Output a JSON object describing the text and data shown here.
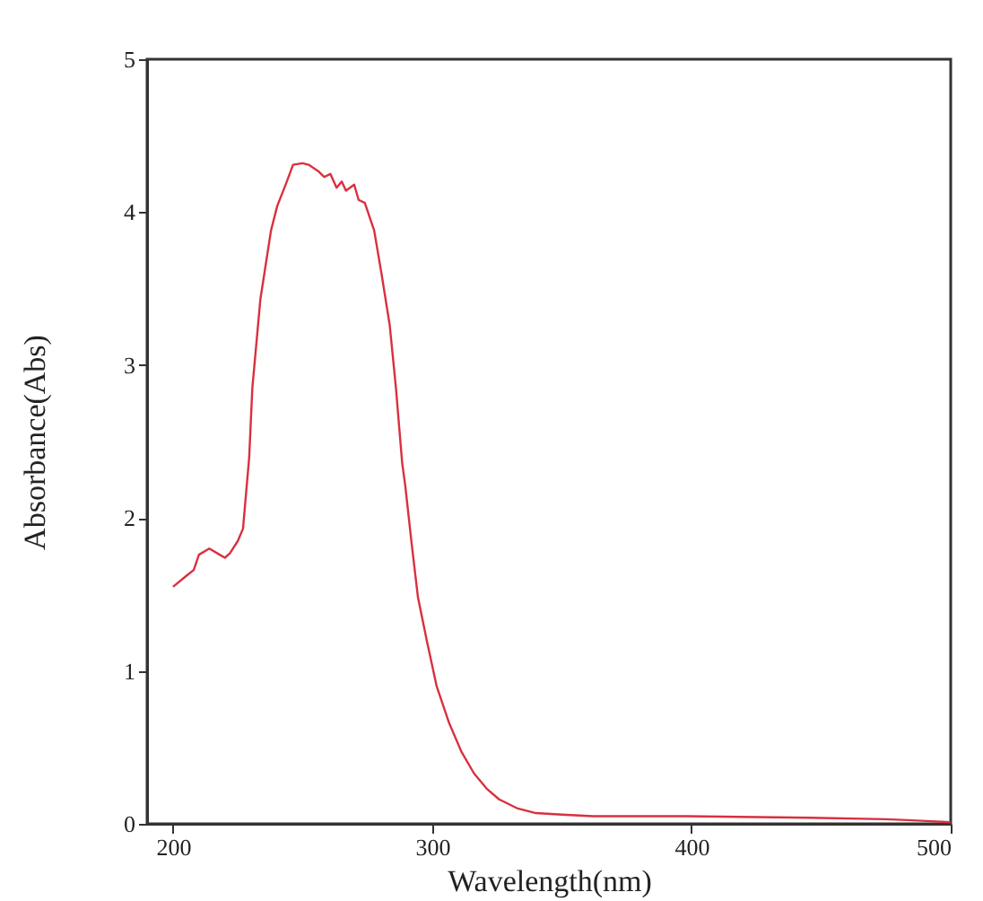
{
  "chart_data": {
    "type": "line",
    "xlabel": "Wavelength(nm)",
    "ylabel": "Absorbance(Abs)",
    "xlim": [
      190,
      500
    ],
    "xticks": [
      200,
      300,
      400,
      500
    ],
    "ylim": [
      0,
      5
    ],
    "yticks": [
      0,
      1,
      2,
      3,
      4,
      5
    ],
    "grid": false,
    "marker": "none",
    "line_style": "solid",
    "series": [
      {
        "color": "#d9303f",
        "x": [
          200,
          205,
          208,
          210,
          214,
          218,
          220,
          222,
          225,
          227,
          229.4,
          230.6,
          233.7,
          237.8,
          240.2,
          243.9,
          246.3,
          249.9,
          252.3,
          255.9,
          258.3,
          260.7,
          263.1,
          265.1,
          266.7,
          269.9,
          271.6,
          274,
          277.6,
          280.5,
          283.6,
          286,
          288.4,
          289.6,
          292,
          294.5,
          298,
          301.7,
          306.5,
          311.3,
          316.1,
          321,
          325.8,
          333,
          340,
          350,
          362,
          398,
          446,
          475,
          489,
          500
        ],
        "values": [
          1.55,
          1.62,
          1.66,
          1.76,
          1.8,
          1.76,
          1.74,
          1.77,
          1.85,
          1.93,
          2.4,
          2.85,
          3.43,
          3.88,
          4.04,
          4.2,
          4.31,
          4.32,
          4.31,
          4.27,
          4.23,
          4.25,
          4.16,
          4.2,
          4.14,
          4.18,
          4.08,
          4.06,
          3.88,
          3.59,
          3.26,
          2.85,
          2.36,
          2.21,
          1.84,
          1.48,
          1.19,
          0.9,
          0.66,
          0.47,
          0.33,
          0.23,
          0.16,
          0.1,
          0.07,
          0.06,
          0.05,
          0.05,
          0.04,
          0.03,
          0.02,
          0.01
        ]
      }
    ]
  }
}
